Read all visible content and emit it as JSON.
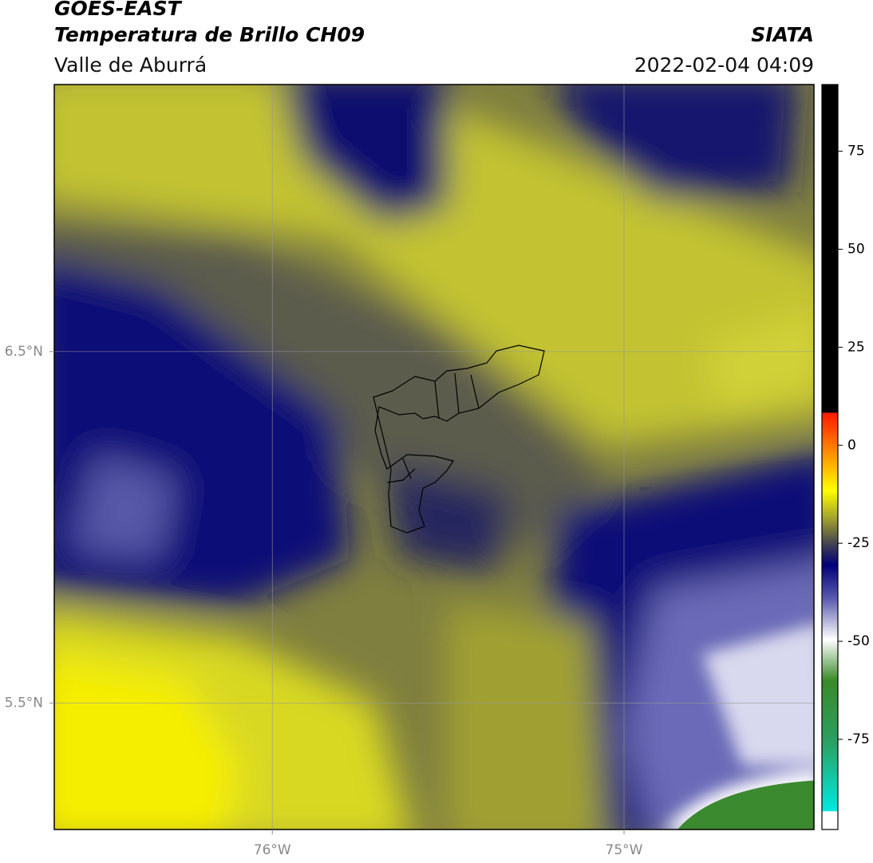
{
  "header": {
    "title": "GOES-EAST",
    "subtitle": "Temperatura de Brillo CH09",
    "region": "Valle de Aburrá",
    "source": "SIATA",
    "timestamp": "2022-02-04 04:09"
  },
  "map": {
    "xlim": [
      -76.62,
      -74.46
    ],
    "ylim": [
      5.14,
      7.26
    ],
    "xticks": [
      {
        "value": -76,
        "label": "76°W"
      },
      {
        "value": -75,
        "label": "75°W"
      }
    ],
    "yticks": [
      {
        "value": 6.5,
        "label": "6.5°N"
      },
      {
        "value": 5.5,
        "label": "5.5°N"
      }
    ],
    "grid": true
  },
  "colorbar": {
    "lim": [
      -98,
      92
    ],
    "ticks": [
      75,
      50,
      25,
      0,
      -25,
      -50,
      -75
    ]
  }
}
